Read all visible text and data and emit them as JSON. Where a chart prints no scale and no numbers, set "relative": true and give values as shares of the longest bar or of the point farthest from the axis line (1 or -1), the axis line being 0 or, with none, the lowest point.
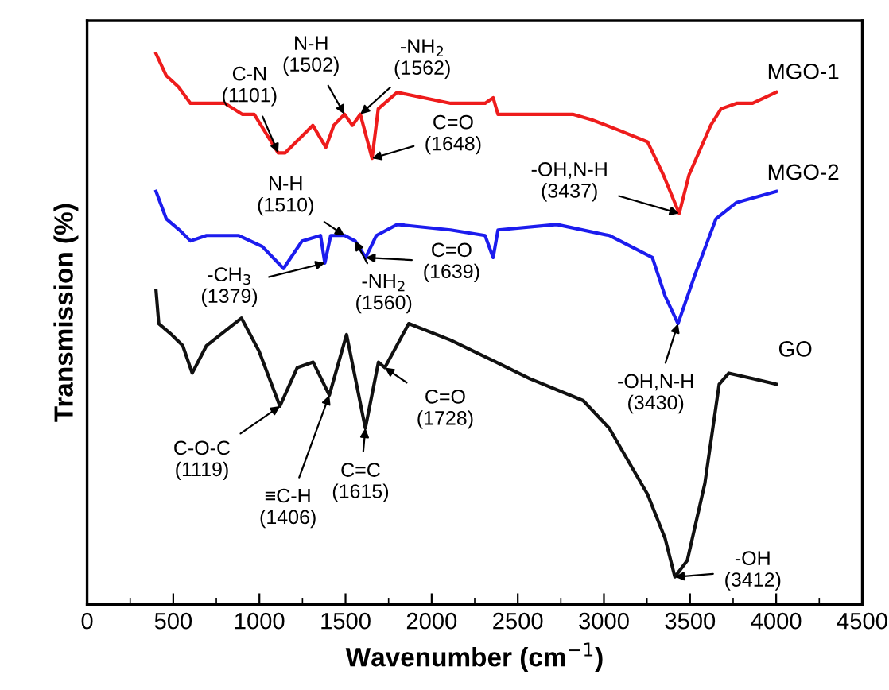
{
  "chart_data": {
    "type": "line",
    "relative": true,
    "xlabel": "Wavenumber (cm$^{−1}$)",
    "ylabel": "Transmission (%)",
    "xlim": [
      0,
      4500
    ],
    "xticks": [
      0,
      500,
      1000,
      1500,
      2000,
      2500,
      3000,
      3500,
      4000,
      4500
    ],
    "grid": false,
    "legend": false,
    "marker": "none",
    "line_style": "solid",
    "series": [
      {
        "name": "MGO-1",
        "color": "#ee1c1c",
        "x": [
          400,
          460,
          530,
          600,
          700,
          800,
          900,
          970,
          1109,
          1150,
          1310,
          1386,
          1432,
          1494,
          1540,
          1586,
          1654,
          1690,
          1800,
          2110,
          2310,
          2357,
          2385,
          2819,
          2930,
          3096,
          3253,
          3345,
          3437,
          3494,
          3620,
          3680,
          3770,
          3863,
          4000
        ],
        "values": [
          1.0,
          0.96,
          0.94,
          0.91,
          0.91,
          0.91,
          0.89,
          0.89,
          0.82,
          0.82,
          0.87,
          0.83,
          0.87,
          0.89,
          0.87,
          0.89,
          0.81,
          0.9,
          0.93,
          0.91,
          0.91,
          0.92,
          0.89,
          0.89,
          0.88,
          0.86,
          0.84,
          0.78,
          0.71,
          0.78,
          0.87,
          0.9,
          0.91,
          0.91,
          0.93
        ]
      },
      {
        "name": "MGO-2",
        "color": "#1c1cee",
        "x": [
          400,
          460,
          536,
          600,
          693,
          878,
          1017,
          1140,
          1248,
          1355,
          1380,
          1414,
          1494,
          1556,
          1617,
          1679,
          1800,
          2110,
          2310,
          2357,
          2385,
          2726,
          3031,
          3281,
          3355,
          3430,
          3530,
          3650,
          3770,
          4000
        ],
        "values": [
          0.75,
          0.7,
          0.68,
          0.66,
          0.67,
          0.67,
          0.65,
          0.61,
          0.66,
          0.67,
          0.62,
          0.67,
          0.67,
          0.66,
          0.63,
          0.67,
          0.69,
          0.68,
          0.67,
          0.63,
          0.68,
          0.69,
          0.67,
          0.63,
          0.56,
          0.51,
          0.6,
          0.7,
          0.73,
          0.75
        ]
      },
      {
        "name": "GO",
        "color": "#111111",
        "x": [
          400,
          416,
          490,
          555,
          610,
          693,
          896,
          998,
          1119,
          1220,
          1312,
          1406,
          1506,
          1615,
          1691,
          1728,
          1867,
          2110,
          2375,
          2570,
          2880,
          3031,
          3253,
          3355,
          3412,
          3484,
          3586,
          3669,
          3725,
          3863,
          4000
        ],
        "values": [
          0.57,
          0.51,
          0.49,
          0.47,
          0.42,
          0.47,
          0.52,
          0.46,
          0.36,
          0.43,
          0.44,
          0.38,
          0.49,
          0.32,
          0.44,
          0.43,
          0.51,
          0.48,
          0.44,
          0.41,
          0.37,
          0.32,
          0.2,
          0.12,
          0.05,
          0.08,
          0.22,
          0.4,
          0.42,
          0.41,
          0.4
        ]
      }
    ],
    "annotations": [
      {
        "text": "C-N\n(1101)",
        "x": 1109,
        "y": 0.82
      },
      {
        "text": "N-H\n(1502)",
        "x": 1494,
        "y": 0.89
      },
      {
        "text": "-NH$_{2}$\n(1562)",
        "x": 1586,
        "y": 0.89
      },
      {
        "text": "C=O\n(1648)",
        "x": 1654,
        "y": 0.81
      },
      {
        "text": "-OH,N-H\n(3437)",
        "x": 3437,
        "y": 0.71
      },
      {
        "text": "N-H\n(1510)",
        "x": 1494,
        "y": 0.67
      },
      {
        "text": "-CH$_{3}$\n(1379)",
        "x": 1380,
        "y": 0.62
      },
      {
        "text": "-NH$_{2}$\n(1560)",
        "x": 1556,
        "y": 0.66
      },
      {
        "text": "C=O\n(1639)",
        "x": 1617,
        "y": 0.63
      },
      {
        "text": "-OH,N-H\n(3430)",
        "x": 3430,
        "y": 0.51
      },
      {
        "text": "C-O-C\n(1119)",
        "x": 1119,
        "y": 0.36
      },
      {
        "text": "≡C-H\n(1406)",
        "x": 1406,
        "y": 0.38
      },
      {
        "text": "C=C\n(1615)",
        "x": 1615,
        "y": 0.32
      },
      {
        "text": "C=O\n(1728)",
        "x": 1728,
        "y": 0.43
      },
      {
        "text": "-OH\n(3412)",
        "x": 3412,
        "y": 0.05
      }
    ]
  }
}
